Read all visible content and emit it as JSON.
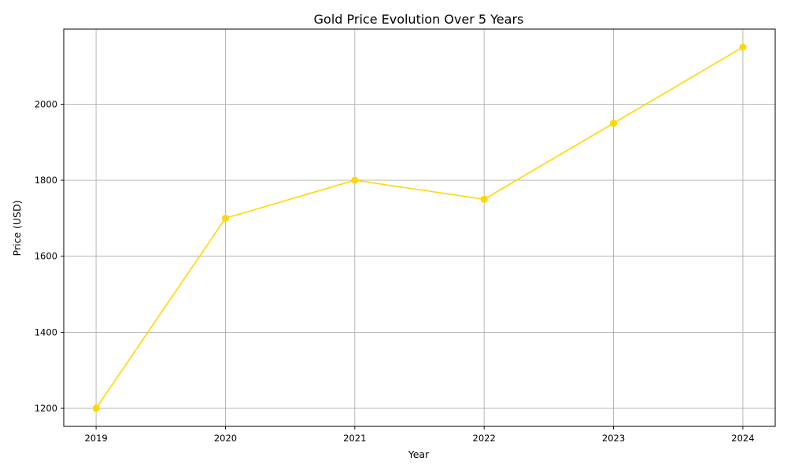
{
  "chart_data": {
    "type": "line",
    "title": "Gold Price Evolution Over 5 Years",
    "xlabel": "Year",
    "ylabel": "Price (USD)",
    "x": [
      2019,
      2020,
      2021,
      2022,
      2023,
      2024
    ],
    "x_tick_labels": [
      "2019",
      "2020",
      "2021",
      "2022",
      "2023",
      "2024"
    ],
    "series": [
      {
        "values": [
          1200,
          1700,
          1800,
          1750,
          1950,
          2150
        ],
        "color": "#FFD700",
        "marker": "circle"
      }
    ],
    "xlim": [
      2018.75,
      2024.25
    ],
    "ylim": [
      1152.5,
      2197.5
    ],
    "y_ticks": [
      1200,
      1400,
      1600,
      1800,
      2000
    ],
    "y_tick_labels": [
      "1200",
      "1400",
      "1600",
      "1800",
      "2000"
    ],
    "grid": true,
    "legend": "none"
  }
}
